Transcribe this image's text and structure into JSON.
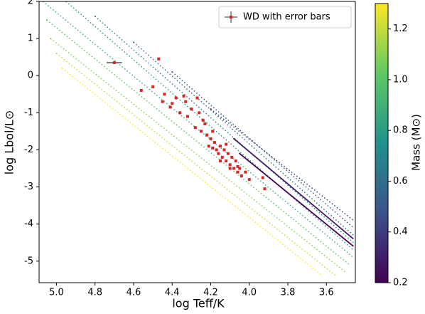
{
  "chart_data": {
    "type": "scatter",
    "xlabel": "log Teff/K",
    "ylabel": "log Lbol/L⊙",
    "xlim": [
      5.09,
      3.45
    ],
    "ylim": [
      -5.58,
      2
    ],
    "xticks": [
      {
        "value": 5,
        "label": "5.0"
      },
      4.8,
      4.6,
      4.4,
      4.2,
      {
        "value": 4,
        "label": "4.0"
      },
      3.8,
      3.6
    ],
    "yticks": [
      -5,
      -4,
      -3,
      -2,
      -1,
      0,
      1,
      2
    ],
    "colormap": [
      "#440154",
      "#3b528b",
      "#21918c",
      "#5ec962",
      "#fde725"
    ],
    "clim": [
      0.2,
      1.3
    ],
    "cticks": [
      0.2,
      0.4,
      0.6,
      0.8,
      {
        "value": 1,
        "label": "1.0"
      },
      1.2
    ],
    "clabel": "Mass (M⊙)",
    "tracks": [
      {
        "mass": 1.3,
        "x": [
          4.97,
          3.62
        ],
        "y": [
          0.2,
          -5.4
        ]
      },
      {
        "mass": 1.2,
        "x": [
          5.0,
          3.55
        ],
        "y": [
          0.6,
          -5.4
        ]
      },
      {
        "mass": 1.1,
        "x": [
          5.03,
          3.5
        ],
        "y": [
          1.0,
          -5.3
        ]
      },
      {
        "mass": 1.0,
        "x": [
          5.05,
          3.48
        ],
        "y": [
          1.5,
          -5.1
        ]
      },
      {
        "mass": 0.9,
        "x": [
          5.07,
          3.46
        ],
        "y": [
          2.0,
          -4.9
        ]
      },
      {
        "mass": 0.8,
        "x": [
          4.95,
          3.46
        ],
        "y": [
          2.0,
          -4.7
        ]
      },
      {
        "mass": 0.7,
        "x": [
          4.8,
          3.46
        ],
        "y": [
          1.6,
          -4.5
        ]
      },
      {
        "mass": 0.6,
        "x": [
          4.6,
          3.46
        ],
        "y": [
          0.9,
          -4.3
        ]
      },
      {
        "mass": 0.5,
        "x": [
          4.4,
          3.46
        ],
        "y": [
          0.1,
          -4.1
        ]
      },
      {
        "mass": 0.4,
        "x": [
          4.2,
          3.46
        ],
        "y": [
          -0.9,
          -3.9
        ]
      },
      {
        "mass": 0.3,
        "x": [
          4.08,
          3.46
        ],
        "y": [
          -1.7,
          -4.4
        ]
      },
      {
        "mass": 0.2,
        "x": [
          4.05,
          3.46
        ],
        "y": [
          -2.1,
          -4.6
        ]
      }
    ],
    "series": [
      {
        "name": "WD with error bars",
        "color": "#d62728",
        "x": [
          4.7,
          4.47,
          4.56,
          4.5,
          4.44,
          4.41,
          4.38,
          4.36,
          4.33,
          4.32,
          4.3,
          4.28,
          4.27,
          4.25,
          4.24,
          4.22,
          4.21,
          4.2,
          4.19,
          4.18,
          4.17,
          4.16,
          4.15,
          4.14,
          4.13,
          4.12,
          4.11,
          4.1,
          4.09,
          4.08,
          4.07,
          4.06,
          4.05,
          4.04,
          4.02,
          4.0,
          3.93,
          3.92,
          4.45,
          4.4,
          4.34,
          4.26,
          4.23,
          4.19,
          4.15,
          4.12,
          4.1,
          4.06
        ],
        "y": [
          0.35,
          0.45,
          -0.4,
          -0.3,
          -0.5,
          -0.85,
          -0.6,
          -1.0,
          -0.7,
          -1.1,
          -0.9,
          -1.4,
          -0.6,
          -1.5,
          -1.2,
          -1.6,
          -1.9,
          -1.7,
          -1.5,
          -1.8,
          -2.0,
          -2.1,
          -1.9,
          -2.2,
          -2.0,
          -2.3,
          -2.1,
          -2.4,
          -2.2,
          -2.5,
          -2.3,
          -2.6,
          -2.5,
          -2.7,
          -2.6,
          -2.8,
          -2.75,
          -3.05,
          -0.7,
          -0.75,
          -0.55,
          -1.0,
          -1.3,
          -1.95,
          -2.3,
          -1.85,
          -2.5,
          -2.45
        ],
        "xerr": [
          0.04
        ],
        "yerr": [
          0.03
        ]
      }
    ],
    "legend": "upper right"
  }
}
